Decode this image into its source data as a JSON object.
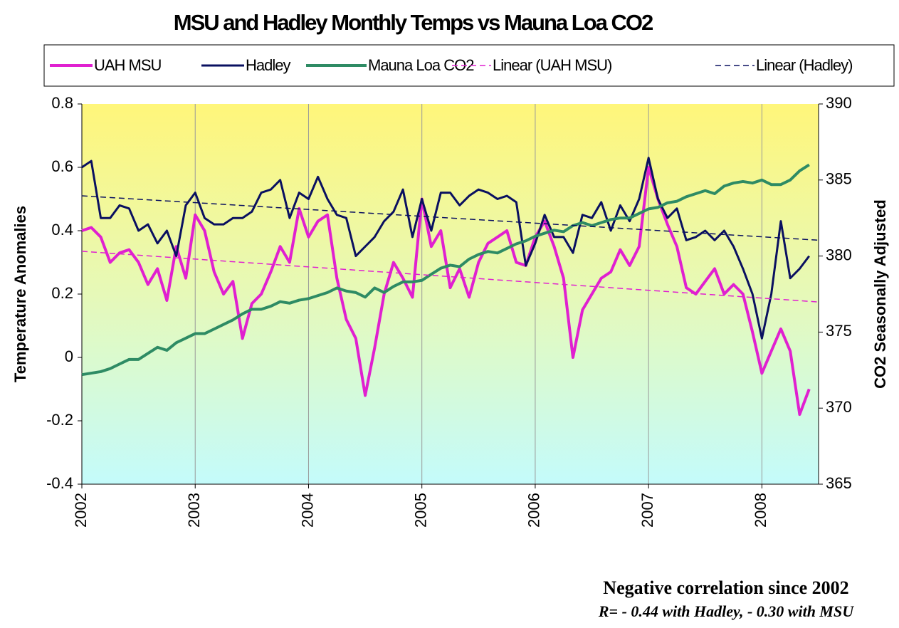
{
  "chart_data": {
    "type": "line",
    "title": "MSU and Hadley Monthly Temps vs Mauna Loa CO2",
    "y_label": "Temperature Anomalies",
    "y2_label": "CO2 Seasonally Adjusted",
    "annotations": [
      "Negative correlation since 2002",
      "R= - 0.44 with Hadley, - 0.30 with MSU"
    ],
    "xlim": [
      2002,
      2008.5
    ],
    "xticks": [
      2002,
      2003,
      2004,
      2005,
      2006,
      2007,
      2008
    ],
    "ylim": [
      -0.4,
      0.8
    ],
    "yticks": [
      -0.4,
      -0.2,
      0,
      0.2,
      0.4,
      0.6,
      0.8
    ],
    "y2lim": [
      365,
      390
    ],
    "y2ticks": [
      365,
      370,
      375,
      380,
      385,
      390
    ],
    "grid": true,
    "legend": "top",
    "x": [
      2002.0,
      2002.083,
      2002.167,
      2002.25,
      2002.333,
      2002.417,
      2002.5,
      2002.583,
      2002.667,
      2002.75,
      2002.833,
      2002.917,
      2003.0,
      2003.083,
      2003.167,
      2003.25,
      2003.333,
      2003.417,
      2003.5,
      2003.583,
      2003.667,
      2003.75,
      2003.833,
      2003.917,
      2004.0,
      2004.083,
      2004.167,
      2004.25,
      2004.333,
      2004.417,
      2004.5,
      2004.583,
      2004.667,
      2004.75,
      2004.833,
      2004.917,
      2005.0,
      2005.083,
      2005.167,
      2005.25,
      2005.333,
      2005.417,
      2005.5,
      2005.583,
      2005.667,
      2005.75,
      2005.833,
      2005.917,
      2006.0,
      2006.083,
      2006.167,
      2006.25,
      2006.333,
      2006.417,
      2006.5,
      2006.583,
      2006.667,
      2006.75,
      2006.833,
      2006.917,
      2007.0,
      2007.083,
      2007.167,
      2007.25,
      2007.333,
      2007.417,
      2007.5,
      2007.583,
      2007.667,
      2007.75,
      2007.833,
      2007.917,
      2008.0,
      2008.083,
      2008.167,
      2008.25,
      2008.333,
      2008.417
    ],
    "series": [
      {
        "name": "UAH MSU",
        "color": "#e020d0",
        "width": 4,
        "values": [
          0.4,
          0.41,
          0.38,
          0.3,
          0.33,
          0.34,
          0.3,
          0.23,
          0.28,
          0.18,
          0.35,
          0.25,
          0.45,
          0.4,
          0.27,
          0.2,
          0.24,
          0.06,
          0.17,
          0.2,
          0.27,
          0.35,
          0.3,
          0.47,
          0.38,
          0.43,
          0.45,
          0.25,
          0.12,
          0.06,
          -0.12,
          0.03,
          0.2,
          0.3,
          0.25,
          0.19,
          0.5,
          0.35,
          0.4,
          0.22,
          0.28,
          0.19,
          0.3,
          0.36,
          0.38,
          0.4,
          0.3,
          0.29,
          0.38,
          0.43,
          0.35,
          0.25,
          0.0,
          0.15,
          0.2,
          0.25,
          0.27,
          0.34,
          0.29,
          0.35,
          0.6,
          0.5,
          0.42,
          0.35,
          0.22,
          0.2,
          0.24,
          0.28,
          0.2,
          0.23,
          0.2,
          0.08,
          -0.05,
          0.02,
          0.09,
          0.02,
          -0.18,
          -0.1
        ]
      },
      {
        "name": "Hadley",
        "color": "#0a1060",
        "width": 3,
        "values": [
          0.6,
          0.62,
          0.44,
          0.44,
          0.48,
          0.47,
          0.4,
          0.42,
          0.36,
          0.4,
          0.32,
          0.48,
          0.52,
          0.44,
          0.42,
          0.42,
          0.44,
          0.44,
          0.46,
          0.52,
          0.53,
          0.56,
          0.44,
          0.52,
          0.5,
          0.57,
          0.5,
          0.45,
          0.44,
          0.32,
          0.35,
          0.38,
          0.43,
          0.46,
          0.53,
          0.38,
          0.5,
          0.4,
          0.52,
          0.52,
          0.48,
          0.51,
          0.53,
          0.52,
          0.5,
          0.51,
          0.49,
          0.29,
          0.36,
          0.45,
          0.38,
          0.38,
          0.33,
          0.45,
          0.44,
          0.49,
          0.4,
          0.48,
          0.43,
          0.5,
          0.63,
          0.5,
          0.44,
          0.47,
          0.37,
          0.38,
          0.4,
          0.37,
          0.4,
          0.35,
          0.28,
          0.2,
          0.06,
          0.2,
          0.43,
          0.25,
          0.28,
          0.32
        ]
      },
      {
        "name": "Mauna Loa CO2",
        "color": "#2e8b64",
        "width": 4,
        "axis": "y2",
        "values": [
          372.2,
          372.3,
          372.4,
          372.6,
          372.9,
          373.2,
          373.2,
          373.6,
          374.0,
          373.8,
          374.3,
          374.6,
          374.9,
          374.9,
          375.2,
          375.5,
          375.8,
          376.2,
          376.5,
          376.5,
          376.7,
          377.0,
          376.9,
          377.1,
          377.2,
          377.4,
          377.6,
          377.9,
          377.7,
          377.6,
          377.3,
          377.9,
          377.6,
          378.0,
          378.3,
          378.3,
          378.4,
          378.8,
          379.2,
          379.4,
          379.3,
          379.8,
          380.1,
          380.3,
          380.2,
          380.5,
          380.8,
          381.0,
          381.3,
          381.5,
          381.7,
          381.6,
          382.0,
          382.2,
          382.0,
          382.2,
          382.4,
          382.5,
          382.5,
          382.8,
          383.1,
          383.2,
          383.5,
          383.6,
          383.9,
          384.1,
          384.3,
          384.1,
          384.6,
          384.8,
          384.9,
          384.8,
          385.0,
          384.7,
          384.7,
          385.0,
          385.6,
          386.0
        ]
      },
      {
        "name": "Linear (UAH MSU)",
        "color": "#e020d0",
        "width": 1.5,
        "dashed": true,
        "x": [
          2002,
          2008.5
        ],
        "values": [
          0.335,
          0.175
        ]
      },
      {
        "name": "Linear (Hadley)",
        "color": "#0a1060",
        "width": 1.5,
        "dashed": true,
        "x": [
          2002,
          2008.5
        ],
        "values": [
          0.51,
          0.37
        ]
      }
    ]
  }
}
